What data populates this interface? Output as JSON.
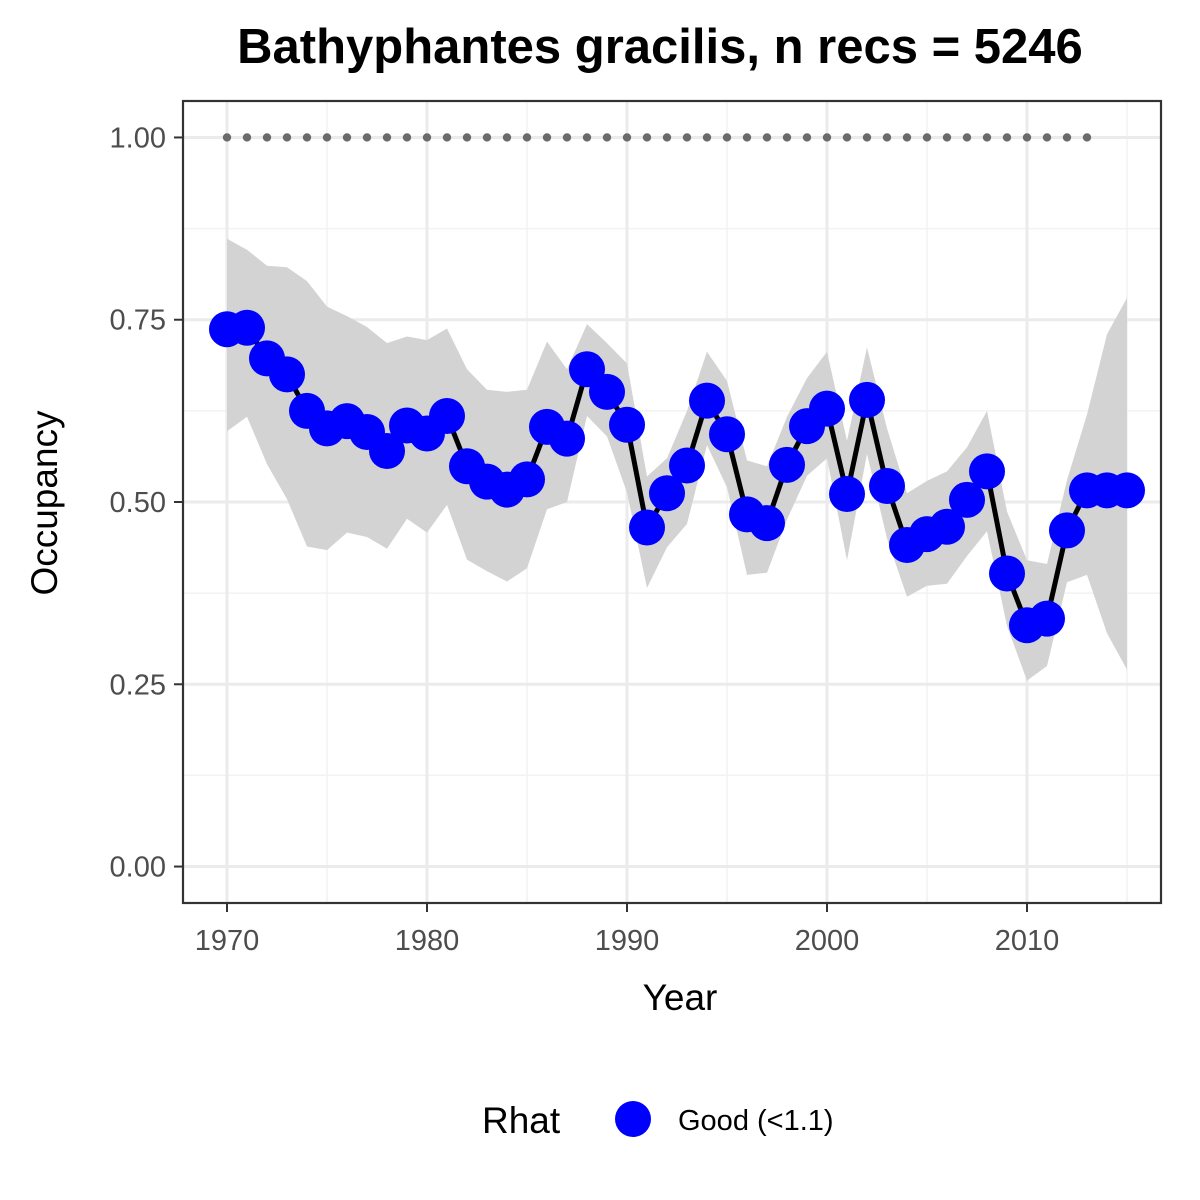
{
  "chart_data": {
    "type": "line",
    "title": "Bathyphantes gracilis, n recs = 5246",
    "xlabel": "Year",
    "ylabel": "Occupancy",
    "xlim": [
      1967.8,
      2016.7
    ],
    "ylim": [
      -0.05,
      1.05
    ],
    "x_ticks": [
      1970,
      1980,
      1990,
      2000,
      2010
    ],
    "x_tick_labels": [
      "1970",
      "1980",
      "1990",
      "2000",
      "2010"
    ],
    "y_ticks": [
      0,
      0.25,
      0.5,
      0.75,
      1.0
    ],
    "y_tick_labels": [
      "0.00",
      "0.25",
      "0.50",
      "0.75",
      "1.00"
    ],
    "grid": true,
    "legend_position": "bottom",
    "legend_title": "Rhat",
    "legend_items": [
      {
        "label": "Good (<1.1)",
        "color": "#0000ff"
      }
    ],
    "colors": {
      "point": "#0000ff",
      "line": "#000000",
      "ribbon": "#d3d3d3",
      "reference": "#6b6b6b"
    },
    "x": [
      1970,
      1971,
      1972,
      1973,
      1974,
      1975,
      1976,
      1977,
      1978,
      1979,
      1980,
      1981,
      1982,
      1983,
      1984,
      1985,
      1986,
      1987,
      1988,
      1989,
      1990,
      1991,
      1992,
      1993,
      1994,
      1995,
      1996,
      1997,
      1998,
      1999,
      2000,
      2001,
      2002,
      2003,
      2004,
      2005,
      2006,
      2007,
      2008,
      2009,
      2010,
      2011,
      2012,
      2013,
      2014,
      2015
    ],
    "series": [
      {
        "values": [
          0.737,
          0.739,
          0.697,
          0.675,
          0.625,
          0.601,
          0.611,
          0.596,
          0.57,
          0.605,
          0.594,
          0.618,
          0.549,
          0.528,
          0.517,
          0.531,
          0.603,
          0.587,
          0.682,
          0.651,
          0.606,
          0.465,
          0.512,
          0.55,
          0.639,
          0.593,
          0.483,
          0.471,
          0.551,
          0.604,
          0.628,
          0.511,
          0.64,
          0.522,
          0.441,
          0.456,
          0.466,
          0.503,
          0.542,
          0.402,
          0.331,
          0.34,
          0.461,
          0.516,
          0.516,
          0.516
        ],
        "lower": [
          0.597,
          0.617,
          0.552,
          0.504,
          0.439,
          0.434,
          0.458,
          0.452,
          0.436,
          0.477,
          0.458,
          0.496,
          0.421,
          0.405,
          0.391,
          0.409,
          0.49,
          0.5,
          0.618,
          0.59,
          0.513,
          0.382,
          0.438,
          0.47,
          0.578,
          0.52,
          0.4,
          0.403,
          0.476,
          0.536,
          0.56,
          0.42,
          0.566,
          0.45,
          0.37,
          0.385,
          0.388,
          0.426,
          0.46,
          0.33,
          0.255,
          0.275,
          0.39,
          0.4,
          0.32,
          0.27
        ],
        "upper": [
          0.861,
          0.846,
          0.824,
          0.822,
          0.803,
          0.768,
          0.755,
          0.74,
          0.718,
          0.727,
          0.722,
          0.738,
          0.682,
          0.654,
          0.651,
          0.654,
          0.72,
          0.682,
          0.744,
          0.718,
          0.69,
          0.535,
          0.56,
          0.625,
          0.706,
          0.666,
          0.557,
          0.549,
          0.617,
          0.67,
          0.706,
          0.584,
          0.712,
          0.601,
          0.512,
          0.529,
          0.542,
          0.575,
          0.625,
          0.487,
          0.42,
          0.415,
          0.53,
          0.62,
          0.73,
          0.78
        ]
      }
    ],
    "reference": {
      "x_start": 1970,
      "x_end": 2013,
      "value": 1.0
    }
  }
}
